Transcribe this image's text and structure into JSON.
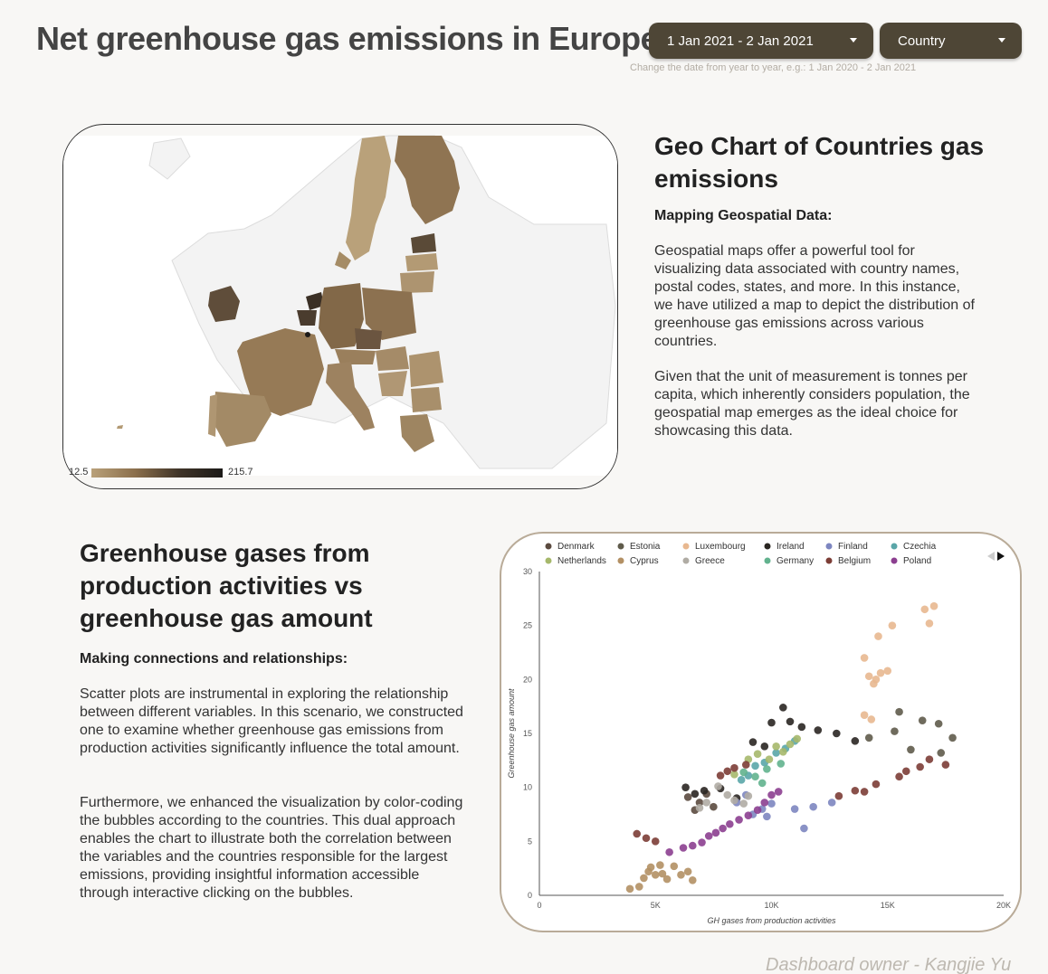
{
  "header": {
    "title": "Net greenhouse gas emissions in Europe",
    "date_range": "1 Jan 2021 - 2 Jan 2021",
    "country_filter": "Country",
    "hint": "Change the date from year to year, e.g.: 1 Jan 2020 - 2 Jan 2021"
  },
  "geo": {
    "legend_min": "12.5",
    "legend_max": "215.7",
    "title": "Geo Chart of Countries gas emissions",
    "subtitle": "Mapping Geospatial Data:",
    "para1": "Geospatial maps offer a powerful tool for visualizing data associated with country names, postal codes, states, and more. In this instance, we have utilized a map to depict the distribution of greenhouse gas emissions across various countries.",
    "para2": "Given that the unit of measurement is tonnes per capita, which inherently considers population, the geospatial map emerges as the ideal choice for showcasing this data."
  },
  "scatter_text": {
    "title": "Greenhouse gases from production activities vs greenhouse gas amount",
    "subtitle": "Making connections and relationships:",
    "para1": "Scatter plots are instrumental in exploring the relationship between different variables. In this scenario, we constructed one to examine whether greenhouse gas emissions from production activities significantly influence the total amount.",
    "para2": "Furthermore, we enhanced the visualization by color-coding the bubbles according to the countries. This dual approach enables the chart to illustrate both the correlation between the variables and the countries responsible for the largest emissions, providing insightful information accessible through interactive clicking on the bubbles."
  },
  "footer": "Dashboard owner - Kangjie Yu",
  "colors": {
    "dropdown_bg": "#4e4636",
    "map_light": "#b9a17a",
    "map_dark": "#1c1a18"
  },
  "chart_data": {
    "type": "scatter",
    "xlabel": "GH gases from production activities",
    "ylabel": "Greenhouse gas amount",
    "xlim": [
      0,
      20000
    ],
    "ylim": [
      0,
      30
    ],
    "x_ticks": [
      "0",
      "5K",
      "10K",
      "15K",
      "20K"
    ],
    "y_ticks": [
      "0",
      "5",
      "10",
      "15",
      "20",
      "25",
      "30"
    ],
    "legend_position": "top",
    "series": [
      {
        "name": "Denmark",
        "color": "#5b4a3f",
        "points": [
          [
            6400,
            9.1
          ],
          [
            6900,
            8.6
          ],
          [
            7200,
            9.4
          ],
          [
            7500,
            8.2
          ],
          [
            6700,
            7.9
          ]
        ]
      },
      {
        "name": "Estonia",
        "color": "#5f5b4b",
        "points": [
          [
            15500,
            17.0
          ],
          [
            16500,
            16.2
          ],
          [
            17200,
            15.9
          ],
          [
            17800,
            14.6
          ],
          [
            15300,
            15.2
          ],
          [
            14200,
            14.6
          ],
          [
            16000,
            13.5
          ],
          [
            17300,
            13.2
          ]
        ]
      },
      {
        "name": "Luxembourg",
        "color": "#e8b890",
        "points": [
          [
            14000,
            22.0
          ],
          [
            14200,
            20.3
          ],
          [
            14400,
            19.6
          ],
          [
            14500,
            20.0
          ],
          [
            14700,
            20.6
          ],
          [
            15000,
            20.8
          ],
          [
            14600,
            24.0
          ],
          [
            15200,
            25.0
          ],
          [
            16600,
            26.5
          ],
          [
            17000,
            26.8
          ],
          [
            16800,
            25.2
          ],
          [
            14000,
            16.7
          ],
          [
            14300,
            16.3
          ]
        ]
      },
      {
        "name": "Ireland",
        "color": "#2a2622",
        "points": [
          [
            10500,
            17.4
          ],
          [
            10000,
            16.0
          ],
          [
            10800,
            16.1
          ],
          [
            11300,
            15.6
          ],
          [
            12000,
            15.3
          ],
          [
            12800,
            15.0
          ],
          [
            13600,
            14.3
          ],
          [
            9200,
            14.2
          ],
          [
            9700,
            13.8
          ],
          [
            6300,
            10.0
          ],
          [
            6700,
            9.4
          ],
          [
            7100,
            9.7
          ],
          [
            7800,
            9.9
          ],
          [
            8500,
            9.0
          ]
        ]
      },
      {
        "name": "Finland",
        "color": "#7d86c0",
        "points": [
          [
            10000,
            8.5
          ],
          [
            11000,
            8.0
          ],
          [
            11800,
            8.2
          ],
          [
            12600,
            8.6
          ],
          [
            9800,
            7.3
          ],
          [
            9200,
            7.5
          ],
          [
            8500,
            8.6
          ],
          [
            8900,
            9.3
          ],
          [
            11400,
            6.2
          ],
          [
            9600,
            8.0
          ]
        ]
      },
      {
        "name": "Czechia",
        "color": "#5aa6a8",
        "points": [
          [
            11000,
            14.3
          ],
          [
            10600,
            13.6
          ],
          [
            10200,
            13.2
          ],
          [
            9700,
            12.3
          ],
          [
            9000,
            11.1
          ],
          [
            8700,
            10.7
          ],
          [
            9300,
            12.0
          ]
        ]
      },
      {
        "name": "Netherlands",
        "color": "#a6b86b",
        "points": [
          [
            9900,
            12.6
          ],
          [
            10200,
            13.8
          ],
          [
            10500,
            13.3
          ],
          [
            10800,
            14.0
          ],
          [
            11100,
            14.5
          ],
          [
            9400,
            13.1
          ],
          [
            9000,
            12.6
          ],
          [
            8400,
            11.2
          ]
        ]
      },
      {
        "name": "Cyprus",
        "color": "#b39064",
        "points": [
          [
            3900,
            0.6
          ],
          [
            4300,
            0.8
          ],
          [
            4500,
            1.6
          ],
          [
            4700,
            2.2
          ],
          [
            5000,
            1.9
          ],
          [
            5300,
            2.0
          ],
          [
            5500,
            1.5
          ],
          [
            5800,
            2.7
          ],
          [
            6100,
            1.9
          ],
          [
            6400,
            2.2
          ],
          [
            6600,
            1.4
          ],
          [
            4800,
            2.6
          ],
          [
            5200,
            2.8
          ]
        ]
      },
      {
        "name": "Greece",
        "color": "#b0aca4",
        "points": [
          [
            7700,
            10.1
          ],
          [
            8100,
            9.3
          ],
          [
            8400,
            8.8
          ],
          [
            8800,
            8.5
          ],
          [
            9000,
            9.2
          ],
          [
            7200,
            8.6
          ],
          [
            6900,
            8.1
          ]
        ]
      },
      {
        "name": "Germany",
        "color": "#62b28e",
        "points": [
          [
            8800,
            11.4
          ],
          [
            9300,
            11.0
          ],
          [
            9800,
            11.7
          ],
          [
            10400,
            12.2
          ],
          [
            9600,
            10.4
          ]
        ]
      },
      {
        "name": "Belgium",
        "color": "#7c3d36",
        "points": [
          [
            7800,
            11.1
          ],
          [
            8100,
            11.5
          ],
          [
            8400,
            11.8
          ],
          [
            8900,
            12.1
          ],
          [
            12900,
            9.2
          ],
          [
            13600,
            9.7
          ],
          [
            14000,
            9.6
          ],
          [
            14500,
            10.3
          ],
          [
            15500,
            11.0
          ],
          [
            15800,
            11.5
          ],
          [
            16400,
            11.9
          ],
          [
            16800,
            12.6
          ],
          [
            17500,
            12.1
          ],
          [
            4200,
            5.7
          ],
          [
            4600,
            5.3
          ],
          [
            5000,
            5.0
          ]
        ]
      },
      {
        "name": "Poland",
        "color": "#8c3f90",
        "points": [
          [
            5600,
            4.0
          ],
          [
            6200,
            4.4
          ],
          [
            6600,
            4.6
          ],
          [
            7000,
            4.9
          ],
          [
            7300,
            5.5
          ],
          [
            7600,
            5.8
          ],
          [
            7900,
            6.2
          ],
          [
            8200,
            6.6
          ],
          [
            8600,
            7.0
          ],
          [
            9000,
            7.4
          ],
          [
            9400,
            7.9
          ],
          [
            9700,
            8.6
          ],
          [
            10000,
            9.3
          ],
          [
            10300,
            9.6
          ]
        ]
      }
    ]
  }
}
